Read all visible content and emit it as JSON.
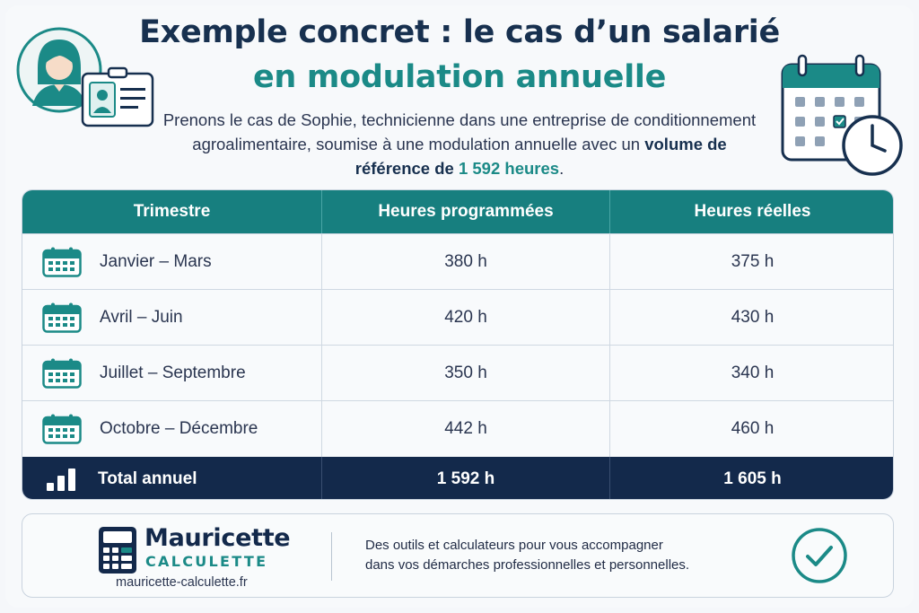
{
  "header": {
    "title_line1": "Exemple concret : le cas d’un salarié",
    "title_line2": "en modulation annuelle",
    "intro_part1": "Prenons le cas de Sophie, technicienne dans une entreprise de conditionnement agroalimentaire, soumise à une modulation annuelle avec un ",
    "intro_bold": "volume de référence de",
    "intro_space": " ",
    "intro_teal": "1 592 heures",
    "intro_end": "."
  },
  "table": {
    "headers": [
      "Trimestre",
      "Heures programmées",
      "Heures réelles"
    ],
    "rows": [
      {
        "period": "Janvier – Mars",
        "programmed": "380 h",
        "actual": "375 h"
      },
      {
        "period": "Avril – Juin",
        "programmed": "420 h",
        "actual": "430 h"
      },
      {
        "period": "Juillet – Septembre",
        "programmed": "350 h",
        "actual": "340 h"
      },
      {
        "period": "Octobre – Décembre",
        "programmed": "442 h",
        "actual": "460 h"
      }
    ],
    "total": {
      "label": "Total annuel",
      "programmed": "1 592 h",
      "actual": "1 605 h"
    }
  },
  "footer": {
    "brand_name": "Mauricette",
    "brand_sub": "CALCULETTE",
    "brand_url": "mauricette-calculette.fr",
    "tagline_line1": "Des outils et calculateurs pour vous accompagner",
    "tagline_line2": "dans vos démarches professionnelles et personnelles."
  },
  "icons": {
    "avatar": "employee-badge-icon",
    "calendar": "calendar-clock-icon",
    "row": "calendar-icon",
    "total": "bar-chart-icon",
    "brand": "calculator-icon",
    "check": "check-circle-icon"
  },
  "colors": {
    "navy": "#13294b",
    "teal": "#177f7f",
    "teal_text": "#1b8a87"
  }
}
